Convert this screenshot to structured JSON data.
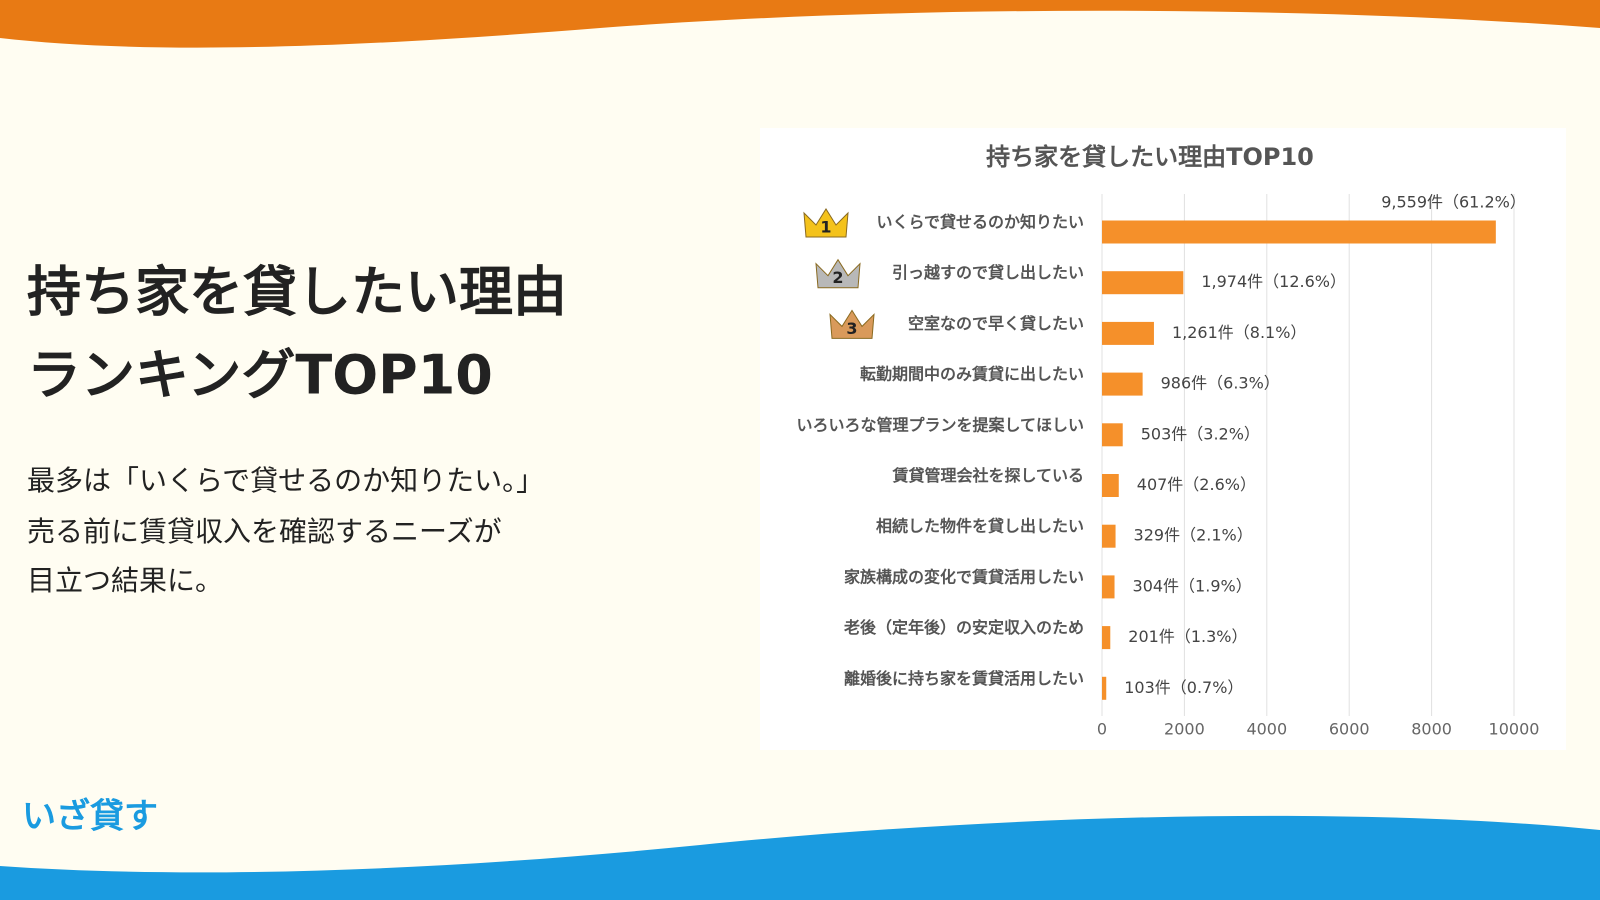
{
  "slide": {
    "headline": [
      "持ち家を貸したい理由",
      "ランキングTOP10"
    ],
    "body": [
      "最多は「いくらで貸せるのか知りたい。」",
      "売る前に賃貸収入を確認するニーズが",
      "目立つ結果に。"
    ],
    "logo": "いざ貸す"
  },
  "chart_data": {
    "type": "barh",
    "title": "持ち家を貸したい理由TOP10",
    "categories": [
      "いくらで貸せるのか知りたい",
      "引っ越すので貸し出したい",
      "空室なので早く貸したい",
      "転勤期間中のみ賃貸に出したい",
      "いろいろな管理プランを提案してほしい",
      "賃貸管理会社を探している",
      "相続した物件を貸し出したい",
      "家族構成の変化で賃貸活用したい",
      "老後（定年後）の安定収入のため",
      "離婚後に持ち家を賃貸活用したい"
    ],
    "values": [
      9559,
      1974,
      1261,
      986,
      503,
      407,
      329,
      304,
      201,
      103
    ],
    "value_labels": [
      "9,559件（61.2%）",
      "1,974件（12.6%）",
      "1,261件（8.1%）",
      "986件（6.3%）",
      "503件（3.2%）",
      "407件（2.6%）",
      "329件（2.1%）",
      "304件（1.9%）",
      "201件（1.3%）",
      "103件（0.7%）"
    ],
    "rank_badges": [
      1,
      2,
      3
    ],
    "color": "#f5902a",
    "xlim": [
      0,
      10000
    ],
    "xticks": [
      0,
      2000,
      4000,
      6000,
      8000,
      10000
    ],
    "grid": true
  }
}
